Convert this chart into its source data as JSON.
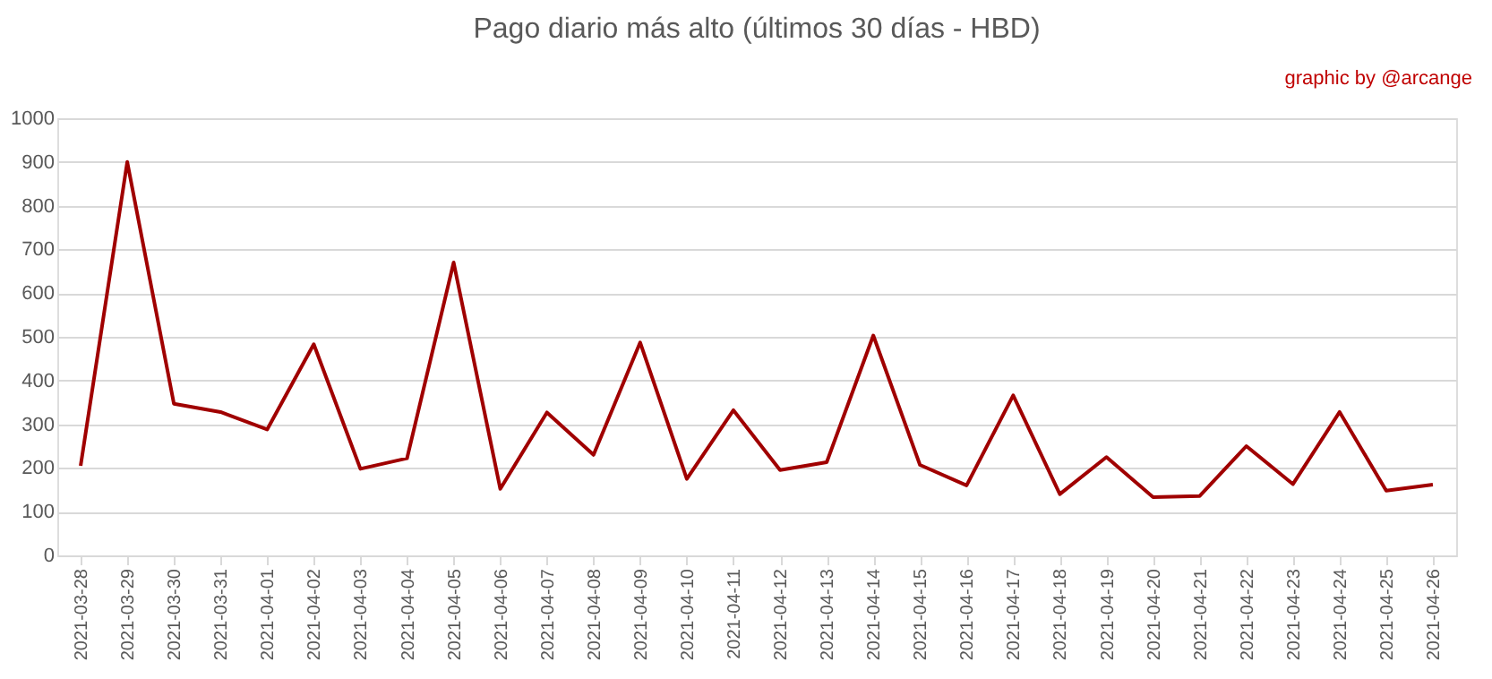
{
  "chart_data": {
    "type": "line",
    "title": "Pago diario más alto (últimos 30 días - HBD)",
    "annotations": [
      "graphic by @arcange"
    ],
    "categories": [
      "2021-03-28",
      "2021-03-29",
      "2021-03-30",
      "2021-03-31",
      "2021-04-01",
      "2021-04-02",
      "2021-04-03",
      "2021-04-04",
      "2021-04-05",
      "2021-04-06",
      "2021-04-07",
      "2021-04-08",
      "2021-04-09",
      "2021-04-10",
      "2021-04-11",
      "2021-04-12",
      "2021-04-13",
      "2021-04-14",
      "2021-04-15",
      "2021-04-16",
      "2021-04-17",
      "2021-04-18",
      "2021-04-19",
      "2021-04-20",
      "2021-04-21",
      "2021-04-22",
      "2021-04-23",
      "2021-04-24",
      "2021-04-25",
      "2021-04-26"
    ],
    "series": [
      {
        "color": "#a00000",
        "values": [
          205,
          900,
          347,
          328,
          288,
          483,
          198,
          222,
          670,
          152,
          327,
          230,
          487,
          175,
          332,
          195,
          213,
          503,
          207,
          160,
          366,
          140,
          225,
          133,
          136,
          250,
          163,
          328,
          148,
          162
        ]
      }
    ],
    "ylim": [
      0,
      1000
    ],
    "yticks": [
      0,
      100,
      200,
      300,
      400,
      500,
      600,
      700,
      800,
      900,
      1000
    ],
    "grid": "y",
    "legend": false,
    "marker": "none",
    "line_style": "solid"
  }
}
